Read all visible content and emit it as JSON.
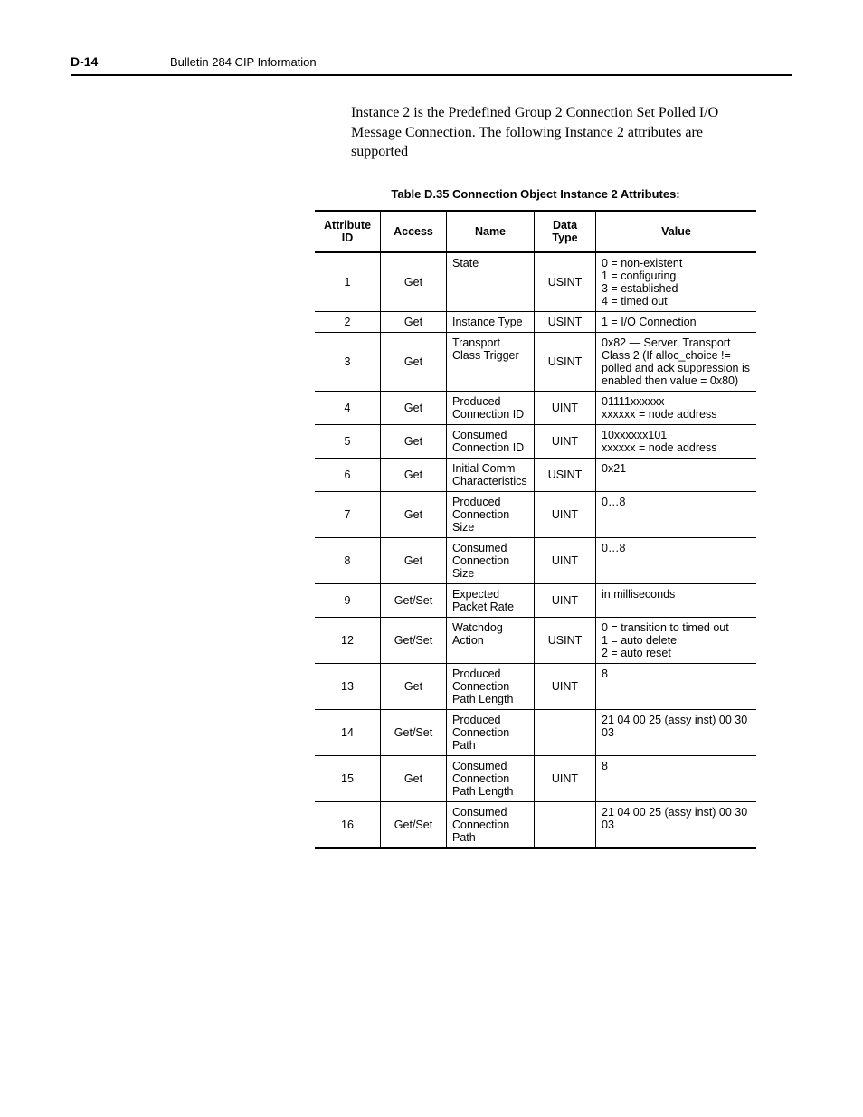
{
  "header": {
    "page_number": "D-14",
    "header_title": "Bulletin 284 CIP Information"
  },
  "intro_text": "Instance 2 is the Predefined Group 2 Connection Set Polled I/O Message Connection. The following Instance 2 attributes are supported",
  "table": {
    "caption": "Table D.35   Connection Object Instance 2 Attributes:",
    "columns": {
      "attribute_id": "Attribute ID",
      "access": "Access",
      "name": "Name",
      "data_type": "Data Type",
      "value": "Value"
    },
    "rows": [
      {
        "id": "1",
        "access": "Get",
        "name": "State",
        "dtype": "USINT",
        "value": "0 = non-existent\n1 = configuring\n3 = established\n4 = timed out"
      },
      {
        "id": "2",
        "access": "Get",
        "name": "Instance Type",
        "dtype": "USINT",
        "value": "1 = I/O Connection"
      },
      {
        "id": "3",
        "access": "Get",
        "name": "Transport Class Trigger",
        "dtype": "USINT",
        "value": "0x82 — Server, Transport Class 2 (If alloc_choice != polled and ack suppression is enabled then value = 0x80)"
      },
      {
        "id": "4",
        "access": "Get",
        "name": "Produced Connection ID",
        "dtype": "UINT",
        "value": "01111xxxxxx\nxxxxxx = node address"
      },
      {
        "id": "5",
        "access": "Get",
        "name": "Consumed Connection ID",
        "dtype": "UINT",
        "value": "10xxxxxx101\nxxxxxx = node address"
      },
      {
        "id": "6",
        "access": "Get",
        "name": "Initial Comm Characteristics",
        "dtype": "USINT",
        "value": "0x21"
      },
      {
        "id": "7",
        "access": "Get",
        "name": "Produced Connection Size",
        "dtype": "UINT",
        "value": "0…8"
      },
      {
        "id": "8",
        "access": "Get",
        "name": "Consumed Connection Size",
        "dtype": "UINT",
        "value": "0…8"
      },
      {
        "id": "9",
        "access": "Get/Set",
        "name": "Expected Packet Rate",
        "dtype": "UINT",
        "value": "in milliseconds"
      },
      {
        "id": "12",
        "access": "Get/Set",
        "name": "Watchdog Action",
        "dtype": "USINT",
        "value": "0 = transition to timed out\n1 = auto delete\n2 = auto reset"
      },
      {
        "id": "13",
        "access": "Get",
        "name": "Produced Connection Path Length",
        "dtype": "UINT",
        "value": "8"
      },
      {
        "id": "14",
        "access": "Get/Set",
        "name": "Produced Connection Path",
        "dtype": "",
        "value": "21 04 00 25 (assy inst) 00 30 03"
      },
      {
        "id": "15",
        "access": "Get",
        "name": "Consumed Connection Path Length",
        "dtype": "UINT",
        "value": "8"
      },
      {
        "id": "16",
        "access": "Get/Set",
        "name": "Consumed Connection Path",
        "dtype": "",
        "value": "21 04 00 25 (assy inst) 00 30 03"
      }
    ]
  }
}
